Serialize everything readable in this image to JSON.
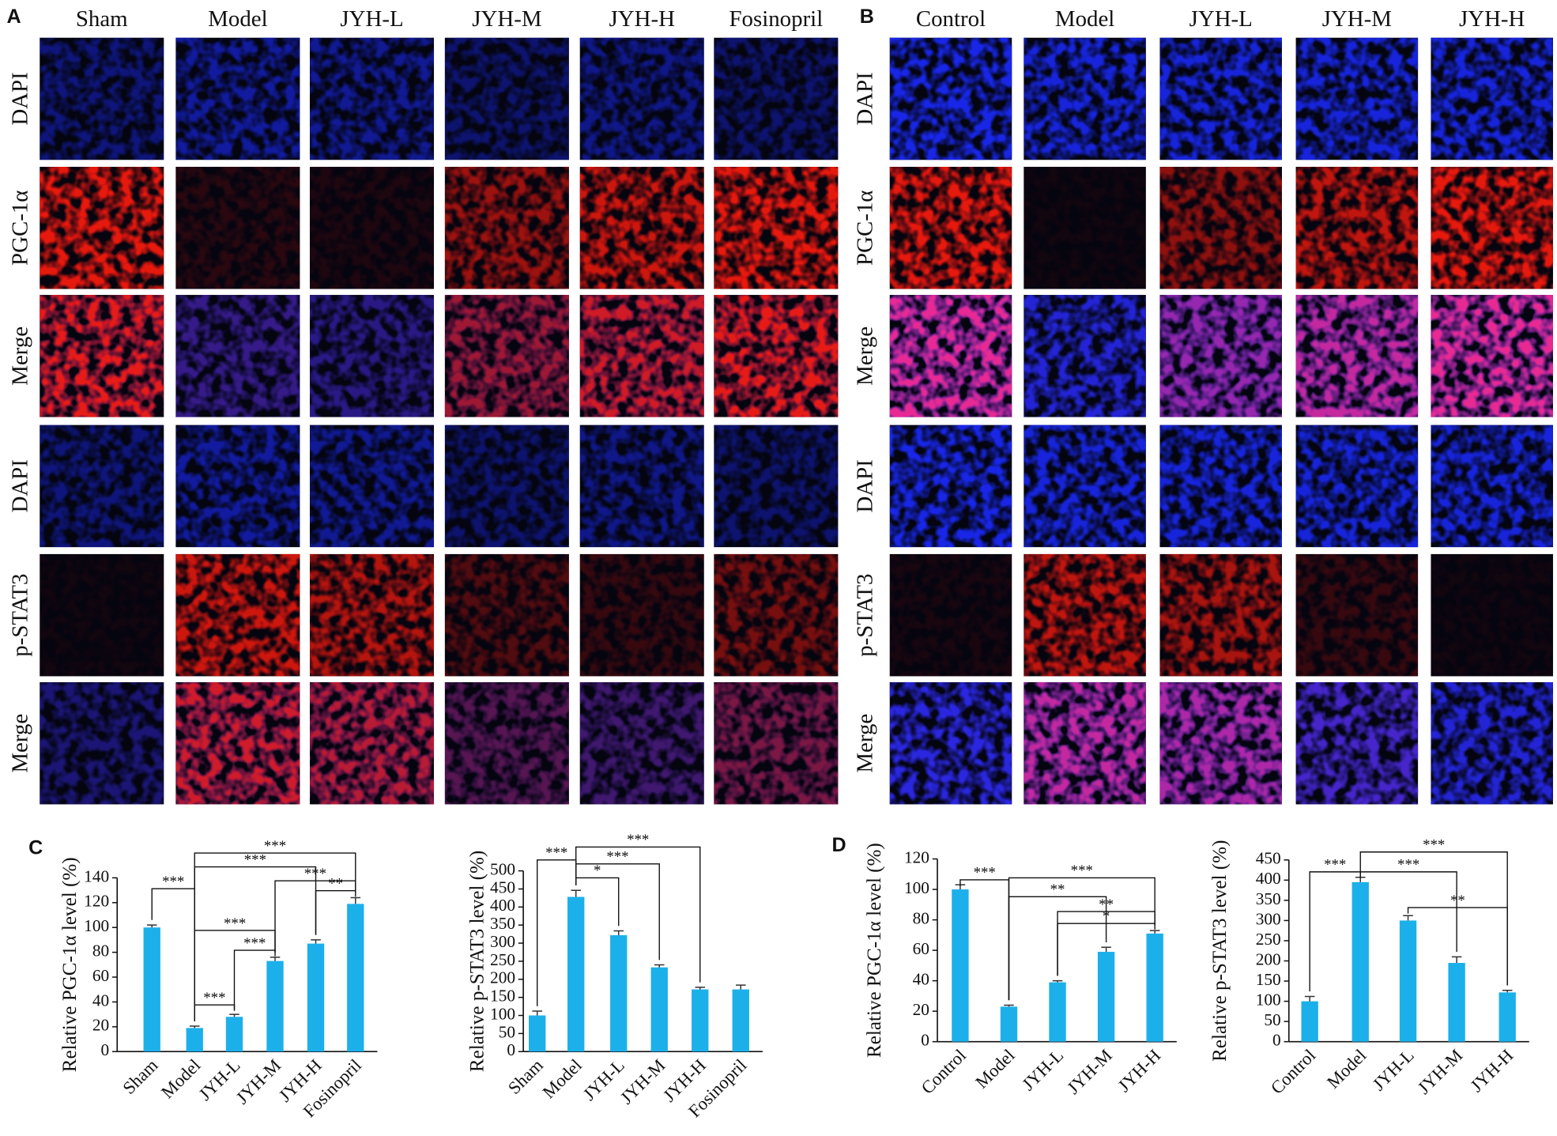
{
  "panel_letters": [
    "A",
    "B",
    "C",
    "D"
  ],
  "image_panels": [
    {
      "columns": [
        "Sham",
        "Model",
        "JYH-L",
        "JYH-M",
        "JYH-H",
        "Fosinopril"
      ],
      "rows": [
        "DAPI",
        "PGC-1α",
        "Merge",
        "DAPI",
        "p-STAT3",
        "Merge"
      ]
    },
    {
      "columns": [
        "Control",
        "Model",
        "JYH-L",
        "JYH-M",
        "JYH-H"
      ],
      "rows": [
        "DAPI",
        "PGC-1α",
        "Merge",
        "DAPI",
        "p-STAT3",
        "Merge"
      ]
    }
  ],
  "chart_data": [
    {
      "type": "bar",
      "y_label": "Relative PGC-1α level (%)",
      "categories": [
        "Sham",
        "Model",
        "JYH-L",
        "JYH-M",
        "JYH-H",
        "Fosinopril"
      ],
      "values": [
        100,
        19,
        28,
        73,
        87,
        119
      ],
      "errors": [
        2,
        1.5,
        2,
        3,
        3,
        5
      ],
      "color": "#1cb0ea",
      "ylim": [
        0,
        140
      ],
      "yticks": [
        0,
        20,
        40,
        60,
        80,
        100,
        120,
        140
      ],
      "brackets": [
        {
          "label": "***",
          "between": [
            "Sham",
            "Model"
          ]
        },
        {
          "label": "***",
          "between": [
            "Model",
            "Fosinopril"
          ]
        },
        {
          "label": "***",
          "between": [
            "Model",
            "JYH-H"
          ]
        },
        {
          "label": "***",
          "between": [
            "JYH-M",
            "Fosinopril"
          ]
        },
        {
          "label": "**",
          "between": [
            "JYH-H",
            "Fosinopril"
          ]
        },
        {
          "label": "***",
          "between": [
            "Model",
            "JYH-M"
          ]
        },
        {
          "label": "***",
          "between": [
            "JYH-L",
            "JYH-M"
          ]
        },
        {
          "label": "***",
          "between": [
            "Model",
            "JYH-L"
          ]
        }
      ]
    },
    {
      "type": "bar",
      "y_label": "Relative p-STAT3 level (%)",
      "categories": [
        "Sham",
        "Model",
        "JYH-L",
        "JYH-M",
        "JYH-H",
        "Fosinopril"
      ],
      "values": [
        100,
        428,
        322,
        233,
        172,
        172
      ],
      "errors": [
        12,
        18,
        12,
        7,
        6,
        12
      ],
      "color": "#1cb0ea",
      "ylim": [
        0,
        500
      ],
      "yticks": [
        0,
        50,
        100,
        150,
        200,
        250,
        300,
        350,
        400,
        450,
        500
      ],
      "brackets": [
        {
          "label": "***",
          "between": [
            "Model",
            "JYH-H"
          ]
        },
        {
          "label": "***",
          "between": [
            "Model",
            "JYH-M"
          ]
        },
        {
          "label": "*",
          "between": [
            "Model",
            "JYH-L"
          ]
        },
        {
          "label": "***",
          "between": [
            "Sham",
            "Model"
          ]
        }
      ]
    },
    {
      "type": "bar",
      "y_label": "Relative PGC-1α level (%)",
      "categories": [
        "Control",
        "Model",
        "JYH-L",
        "JYH-M",
        "JYH-H"
      ],
      "values": [
        100,
        23,
        39,
        59,
        71
      ],
      "errors": [
        3,
        1,
        1,
        3,
        2
      ],
      "color": "#1cb0ea",
      "ylim": [
        0,
        120
      ],
      "yticks": [
        0,
        20,
        40,
        60,
        80,
        100,
        120
      ],
      "brackets": [
        {
          "label": "***",
          "between": [
            "Control",
            "Model"
          ]
        },
        {
          "label": "***",
          "between": [
            "Model",
            "JYH-H"
          ]
        },
        {
          "label": "**",
          "between": [
            "Model",
            "JYH-M"
          ]
        },
        {
          "label": "**",
          "between": [
            "JYH-L",
            "JYH-H"
          ]
        },
        {
          "label": "*",
          "between": [
            "JYH-L",
            "JYH-H"
          ]
        }
      ]
    },
    {
      "type": "bar",
      "y_label": "Relative p-STAT3 level (%)",
      "categories": [
        "Control",
        "Model",
        "JYH-L",
        "JYH-M",
        "JYH-H"
      ],
      "values": [
        100,
        395,
        300,
        195,
        122
      ],
      "errors": [
        12,
        12,
        12,
        15,
        5
      ],
      "color": "#1cb0ea",
      "ylim": [
        0,
        450
      ],
      "yticks": [
        0,
        50,
        100,
        150,
        200,
        250,
        300,
        350,
        400,
        450
      ],
      "brackets": [
        {
          "label": "***",
          "between": [
            "Control",
            "Model"
          ]
        },
        {
          "label": "***",
          "between": [
            "Model",
            "JYH-H"
          ]
        },
        {
          "label": "***",
          "between": [
            "Model",
            "JYH-M"
          ]
        },
        {
          "label": "**",
          "between": [
            "JYH-L",
            "JYH-H"
          ]
        }
      ]
    }
  ]
}
